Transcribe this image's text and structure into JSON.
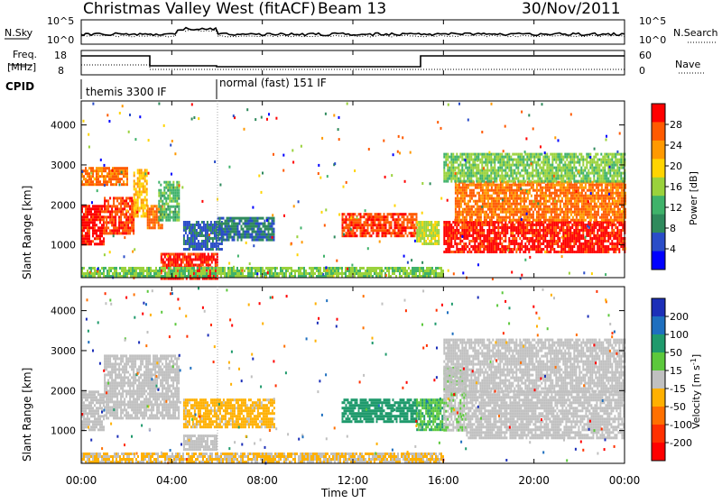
{
  "header": {
    "station": "Christmas Valley West (fitACF)",
    "beam": "Beam 13",
    "date": "30/Nov/2011"
  },
  "side_labels": {
    "nsky": "N.Sky",
    "nsearch": "N.Search",
    "freq_line1": "Freq.",
    "freq_line2": "[MHz]",
    "nave": "Nave",
    "cpid": "CPID"
  },
  "cpid_modes": [
    {
      "label": "themis 3300 IF",
      "start_hour": 0
    },
    {
      "label": "normal (fast) 151 IF",
      "start_hour": 6
    }
  ],
  "x_axis": {
    "label": "Time UT",
    "ticks": [
      "00:00",
      "04:00",
      "08:00",
      "12:00",
      "16:00",
      "20:00",
      "00:00"
    ],
    "range_hours": [
      0,
      24
    ]
  },
  "y_axis": {
    "label": "Slant Range [km]",
    "ticks": [
      "1000",
      "2000",
      "3000",
      "4000"
    ],
    "range_km": [
      180,
      4600
    ]
  },
  "noise_panel": {
    "left_ticks": [
      "10^5",
      "10^0"
    ],
    "right_ticks": [
      "10^5",
      "10^0"
    ]
  },
  "freq_panel": {
    "left_ticks": [
      "18",
      "8"
    ],
    "right_ticks": [
      "60",
      "0"
    ]
  },
  "power_colorbar": {
    "label": "Power [dB]",
    "ticks": [
      "4",
      "8",
      "12",
      "16",
      "20",
      "24",
      "28"
    ],
    "colors": [
      "#0000ff",
      "#2a4dc8",
      "#2f8a5c",
      "#3fb26a",
      "#9ad23c",
      "#ffd400",
      "#ff9900",
      "#ff5a00",
      "#ff0000"
    ]
  },
  "velocity_colorbar": {
    "label": "Velocity [m s",
    "label_sup": "-1",
    "label_end": "]",
    "ticks": [
      "200",
      "100",
      "50",
      "15",
      "-15",
      "-50",
      "-100",
      "-200"
    ],
    "colors": [
      "#1c2fb8",
      "#1e6fbf",
      "#1f9a6c",
      "#5cc83c",
      "#c0c0c0",
      "#ffb000",
      "#ff7000",
      "#ff3000",
      "#ff0000"
    ]
  },
  "chart_data": [
    {
      "type": "heatmap",
      "title": "Power",
      "xlabel": "Time UT",
      "ylabel": "Slant Range [km]",
      "xlim": [
        0,
        24
      ],
      "ylim": [
        180,
        4600
      ],
      "clim": [
        0,
        30
      ],
      "regions": [
        {
          "t": [
            0.0,
            1.0
          ],
          "r": [
            1000,
            2000
          ],
          "value": 28
        },
        {
          "t": [
            0.0,
            2.0
          ],
          "r": [
            2500,
            2950
          ],
          "value": 24
        },
        {
          "t": [
            1.0,
            2.3
          ],
          "r": [
            1300,
            2200
          ],
          "value": 26
        },
        {
          "t": [
            2.3,
            2.9
          ],
          "r": [
            1700,
            2900
          ],
          "value": 20
        },
        {
          "t": [
            2.9,
            3.6
          ],
          "r": [
            1400,
            2000
          ],
          "value": 24
        },
        {
          "t": [
            3.4,
            4.3
          ],
          "r": [
            1600,
            2600
          ],
          "value": 12
        },
        {
          "t": [
            4.5,
            6.2
          ],
          "r": [
            900,
            1600
          ],
          "value": 6
        },
        {
          "t": [
            6.0,
            8.5
          ],
          "r": [
            1100,
            1700
          ],
          "value": 7
        },
        {
          "t": [
            3.5,
            6.0
          ],
          "r": [
            180,
            800
          ],
          "value": 28
        },
        {
          "t": [
            0.0,
            16.0
          ],
          "r": [
            180,
            450
          ],
          "value": 14
        },
        {
          "t": [
            11.5,
            14.8
          ],
          "r": [
            1200,
            1800
          ],
          "value": 26
        },
        {
          "t": [
            14.8,
            15.8
          ],
          "r": [
            1000,
            1600
          ],
          "value": 16
        },
        {
          "t": [
            16.0,
            24.0
          ],
          "r": [
            800,
            1600
          ],
          "value": 28
        },
        {
          "t": [
            16.5,
            24.0
          ],
          "r": [
            1600,
            2600
          ],
          "value": 24
        },
        {
          "t": [
            16.0,
            24.0
          ],
          "r": [
            2600,
            3300
          ],
          "value": 14
        }
      ]
    },
    {
      "type": "heatmap",
      "title": "Velocity",
      "xlabel": "Time UT",
      "ylabel": "Slant Range [km]",
      "xlim": [
        0,
        24
      ],
      "ylim": [
        180,
        4600
      ],
      "clim": [
        -250,
        250
      ],
      "regions": [
        {
          "t": [
            0.0,
            1.0
          ],
          "r": [
            1000,
            2000
          ],
          "value": 0
        },
        {
          "t": [
            1.0,
            4.3
          ],
          "r": [
            1300,
            2900
          ],
          "value": 0
        },
        {
          "t": [
            4.5,
            8.5
          ],
          "r": [
            1100,
            1800
          ],
          "value": -40
        },
        {
          "t": [
            4.5,
            6.0
          ],
          "r": [
            500,
            900
          ],
          "value": 0
        },
        {
          "t": [
            0.0,
            16.0
          ],
          "r": [
            180,
            450
          ],
          "value": -30
        },
        {
          "t": [
            11.5,
            14.8
          ],
          "r": [
            1200,
            1800
          ],
          "value": 120
        },
        {
          "t": [
            14.8,
            16.0
          ],
          "r": [
            1000,
            1800
          ],
          "value": 80
        },
        {
          "t": [
            16.0,
            17.0
          ],
          "r": [
            1000,
            2600
          ],
          "value": 20
        },
        {
          "t": [
            17.0,
            24.0
          ],
          "r": [
            800,
            2000
          ],
          "value": 0
        },
        {
          "t": [
            16.0,
            24.0
          ],
          "r": [
            2000,
            3300
          ],
          "value": 0
        }
      ]
    }
  ]
}
